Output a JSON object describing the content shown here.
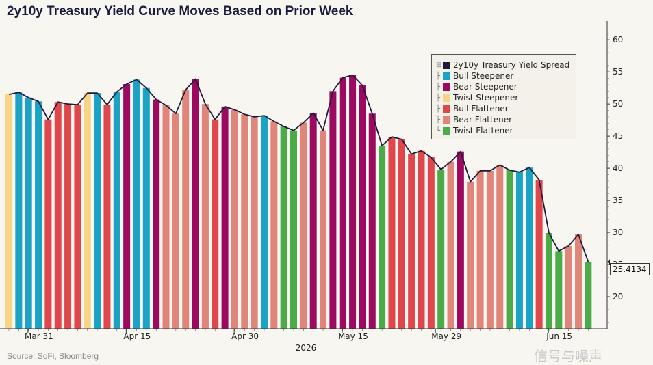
{
  "title": "2y10y Treasury Yield Curve Moves Based on Prior Week",
  "source": "Source: SoFi, Bloomberg",
  "watermark": "信号与噪声",
  "chart_data": {
    "type": "bar",
    "title": "2y10y Treasury Yield Curve Moves Based on Prior Week",
    "xlabel": "2026",
    "ylabel": "",
    "ylim": [
      15,
      63
    ],
    "yticks": [
      20,
      25,
      30,
      35,
      40,
      45,
      50,
      55,
      60
    ],
    "xtick_labels": [
      "Mar 31",
      "Apr 15",
      "Apr 30",
      "May 15",
      "May 29",
      "Jun 15"
    ],
    "xtick_index": [
      2.5,
      12.5,
      23.5,
      34.5,
      44,
      55.5
    ],
    "x_axis_year": "2026",
    "last_value_label": "25.4134",
    "legend": {
      "position": "top-right",
      "line_label": "2y10y Treasury Yield Spread",
      "line_color": "#1e1b3a",
      "categories": [
        {
          "name": "Bull Steepener",
          "color": "#1ba3c6"
        },
        {
          "name": "Bear Steepener",
          "color": "#9b0a5f"
        },
        {
          "name": "Twist Steepener",
          "color": "#f7d486"
        },
        {
          "name": "Bull Flattener",
          "color": "#e0474c"
        },
        {
          "name": "Bear Flattener",
          "color": "#e0857a"
        },
        {
          "name": "Twist Flattener",
          "color": "#4caa48"
        }
      ]
    },
    "series": [
      {
        "name": "2y10y Treasury Yield Spread",
        "values": [
          51.5,
          51.8,
          51.0,
          50.4,
          47.6,
          50.3,
          50.0,
          49.9,
          51.7,
          51.7,
          49.9,
          51.9,
          53.1,
          53.8,
          52.5,
          50.7,
          49.8,
          48.5,
          52.2,
          53.9,
          50.0,
          47.6,
          49.6,
          49.1,
          48.4,
          48.0,
          48.2,
          47.3,
          46.5,
          45.9,
          47.1,
          48.6,
          45.9,
          52.0,
          54.1,
          54.5,
          52.9,
          48.5,
          43.5,
          44.9,
          44.5,
          42.2,
          42.7,
          41.7,
          39.8,
          41.0,
          42.6,
          37.9,
          39.6,
          39.6,
          40.5,
          39.7,
          39.4,
          40.1,
          38.2,
          29.9,
          27.1,
          27.9,
          29.7,
          25.4
        ]
      },
      {
        "name": "Weekly move",
        "categories": [
          "Twist Steepener",
          "Bull Steepener",
          "Bull Steepener",
          "Bull Steepener",
          "Bull Flattener",
          "Bull Flattener",
          "Bull Flattener",
          "Bull Flattener",
          "Twist Steepener",
          "Bull Steepener",
          "Bull Flattener",
          "Bull Steepener",
          "Bear Steepener",
          "Bull Steepener",
          "Bull Steepener",
          "Bear Steepener",
          "Bear Flattener",
          "Bear Flattener",
          "Bear Flattener",
          "Bear Steepener",
          "Bear Flattener",
          "Bull Flattener",
          "Bear Steepener",
          "Bear Flattener",
          "Bear Flattener",
          "Bear Flattener",
          "Bull Steepener",
          "Bear Flattener",
          "Twist Flattener",
          "Twist Flattener",
          "Bear Flattener",
          "Bear Steepener",
          "Bear Flattener",
          "Bear Steepener",
          "Bear Steepener",
          "Bear Steepener",
          "Bear Steepener",
          "Bear Steepener",
          "Twist Flattener",
          "Bull Flattener",
          "Bull Flattener",
          "Bull Flattener",
          "Bull Flattener",
          "Bull Flattener",
          "Twist Flattener",
          "Bear Flattener",
          "Bear Steepener",
          "Bear Flattener",
          "Bear Flattener",
          "Bear Flattener",
          "Bear Flattener",
          "Twist Flattener",
          "Bull Steepener",
          "Bull Steepener",
          "Bull Flattener",
          "Twist Flattener",
          "Twist Flattener",
          "Bear Flattener",
          "Bear Flattener",
          "Twist Flattener"
        ]
      }
    ],
    "grid": false
  }
}
